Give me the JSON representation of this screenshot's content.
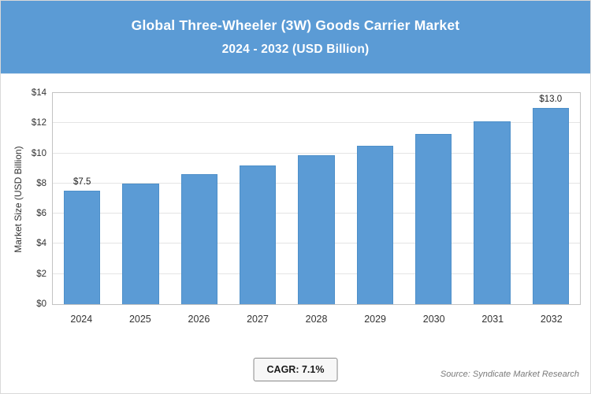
{
  "chart_data": {
    "type": "bar",
    "title": "Global Three-Wheeler (3W) Goods Carrier Market",
    "subtitle": "2024 - 2032 (USD Billion)",
    "ylabel": "Market Size (USD Billion)",
    "xlabel": "",
    "categories": [
      "2024",
      "2025",
      "2026",
      "2027",
      "2028",
      "2029",
      "2030",
      "2031",
      "2032"
    ],
    "values": [
      7.5,
      8.0,
      8.6,
      9.2,
      9.9,
      10.5,
      11.3,
      12.1,
      13.0
    ],
    "data_labels": [
      "$7.5",
      "",
      "",
      "",
      "",
      "",
      "",
      "",
      "$13.0"
    ],
    "ylim": [
      0,
      14
    ],
    "yticks": [
      {
        "value": 0,
        "label": "$0"
      },
      {
        "value": 2,
        "label": "$2"
      },
      {
        "value": 4,
        "label": "$4"
      },
      {
        "value": 6,
        "label": "$6"
      },
      {
        "value": 8,
        "label": "$8"
      },
      {
        "value": 10,
        "label": "$10"
      },
      {
        "value": 12,
        "label": "$12"
      },
      {
        "value": 14,
        "label": "$14"
      }
    ],
    "grid": true,
    "legend": "none"
  },
  "colors": {
    "header_bg": "#5b9bd5",
    "bar": "#5b9bd5",
    "bar_border": "#4d8fc9"
  },
  "footer": {
    "cagr_label": "CAGR: 7.1%",
    "source": "Source: Syndicate Market Research"
  }
}
